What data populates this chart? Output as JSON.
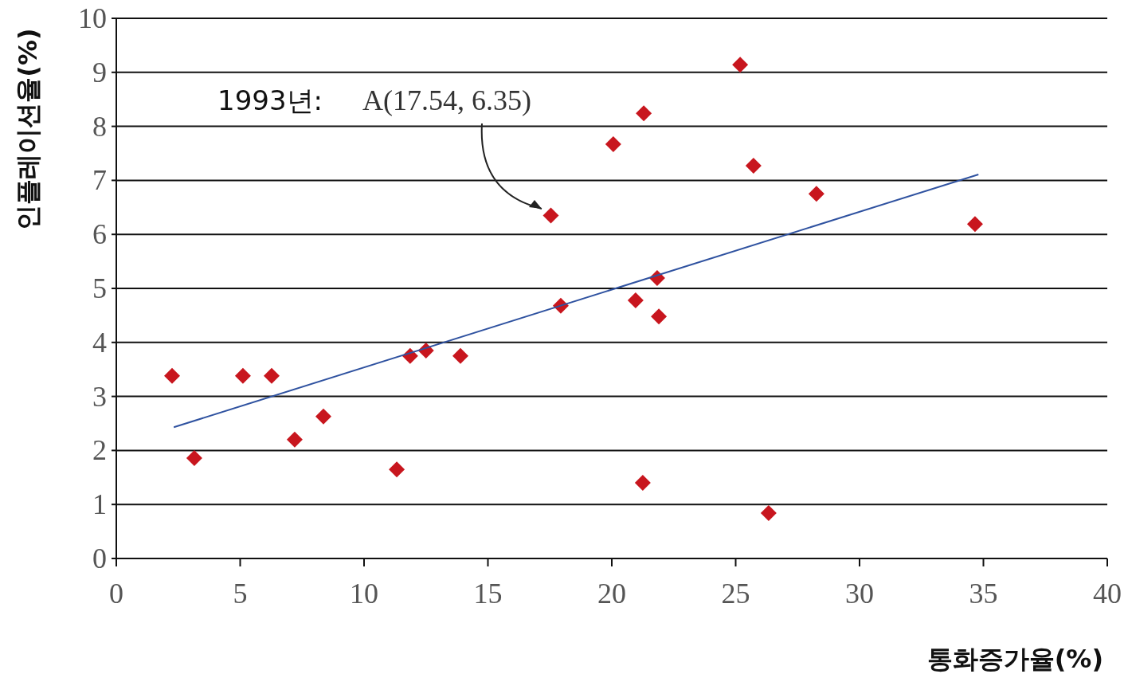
{
  "chart_data": {
    "type": "scatter",
    "xlabel": "통화증가율(%)",
    "ylabel": "인플레이션율(%)",
    "xlim": [
      0,
      40
    ],
    "ylim": [
      0,
      10
    ],
    "xticks": [
      0,
      5,
      10,
      15,
      20,
      25,
      30,
      35,
      40
    ],
    "yticks": [
      0,
      1,
      2,
      3,
      4,
      5,
      6,
      7,
      8,
      9,
      10
    ],
    "grid": "y",
    "series": [
      {
        "color": "#c8161e",
        "marker": "diamond",
        "x": [
          2.25,
          3.15,
          5.11,
          6.27,
          7.2,
          8.36,
          11.32,
          11.86,
          12.5,
          13.89,
          17.54,
          17.94,
          20.06,
          20.96,
          21.29,
          21.25,
          21.83,
          21.9,
          25.18,
          25.72,
          26.33,
          28.26,
          34.66
        ],
        "values": [
          3.38,
          1.86,
          3.38,
          3.38,
          2.2,
          2.63,
          1.65,
          3.75,
          3.85,
          3.75,
          6.35,
          4.68,
          7.67,
          4.78,
          8.24,
          1.4,
          5.19,
          4.48,
          9.14,
          7.27,
          0.84,
          6.75,
          6.19
        ]
      },
      {
        "type": "line",
        "color": "#2f52a0",
        "line_style": "solid",
        "x": [
          2.32,
          34.8
        ],
        "values": [
          2.43,
          7.11
        ]
      }
    ],
    "annotations": [
      "1993년:",
      "A(17.54, 6.35)"
    ]
  }
}
